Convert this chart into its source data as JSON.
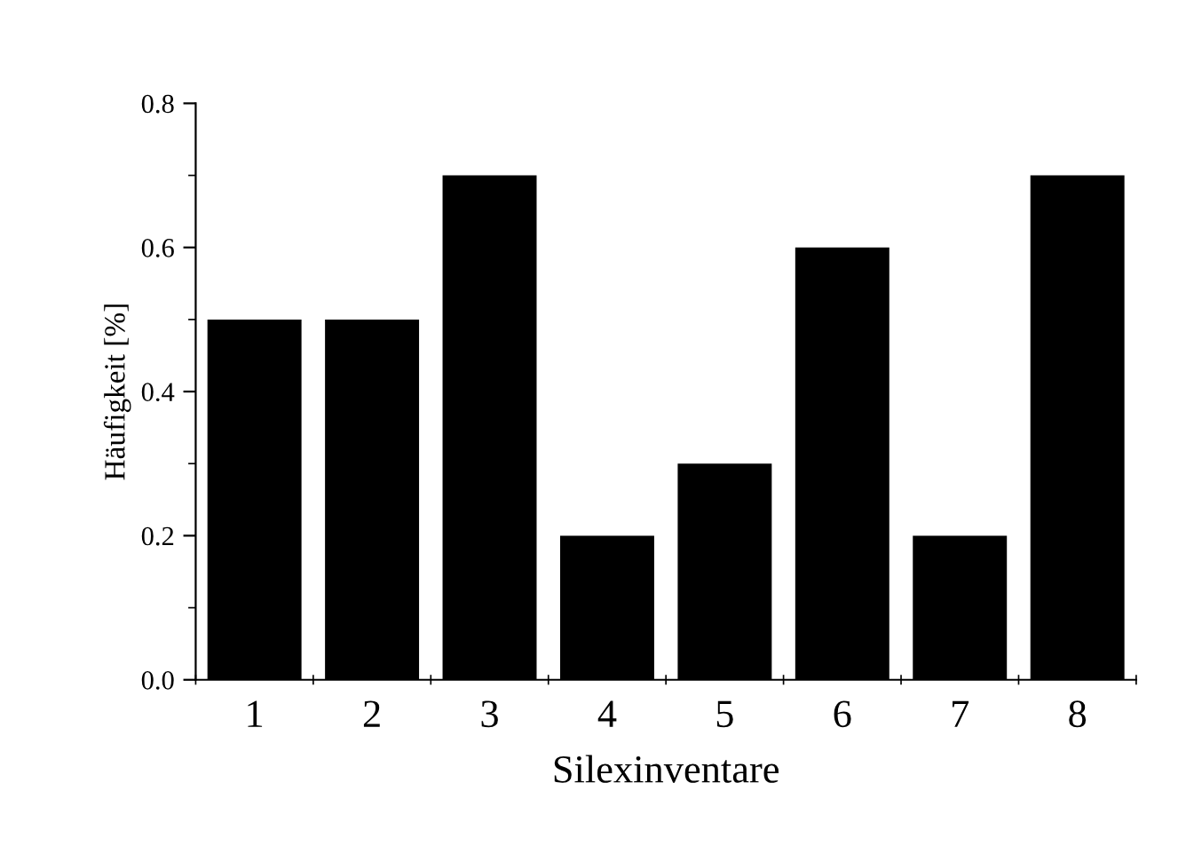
{
  "chart_data": {
    "type": "bar",
    "xlabel": "Silexinventare",
    "ylabel": "Häufigkeit [%]",
    "categories": [
      "1",
      "2",
      "3",
      "4",
      "5",
      "6",
      "7",
      "8"
    ],
    "values": [
      0.5,
      0.5,
      0.7,
      0.2,
      0.3,
      0.6,
      0.2,
      0.7
    ],
    "color": "#000000",
    "ylim": [
      0,
      0.8
    ],
    "yticks": [
      {
        "value": 0,
        "label": "0.0"
      },
      {
        "value": 0.2,
        "label": "0.2"
      },
      {
        "value": 0.4,
        "label": "0.4"
      },
      {
        "value": 0.6,
        "label": "0.6"
      },
      {
        "value": 0.8,
        "label": "0.8"
      }
    ],
    "grid": false,
    "legend": false
  }
}
